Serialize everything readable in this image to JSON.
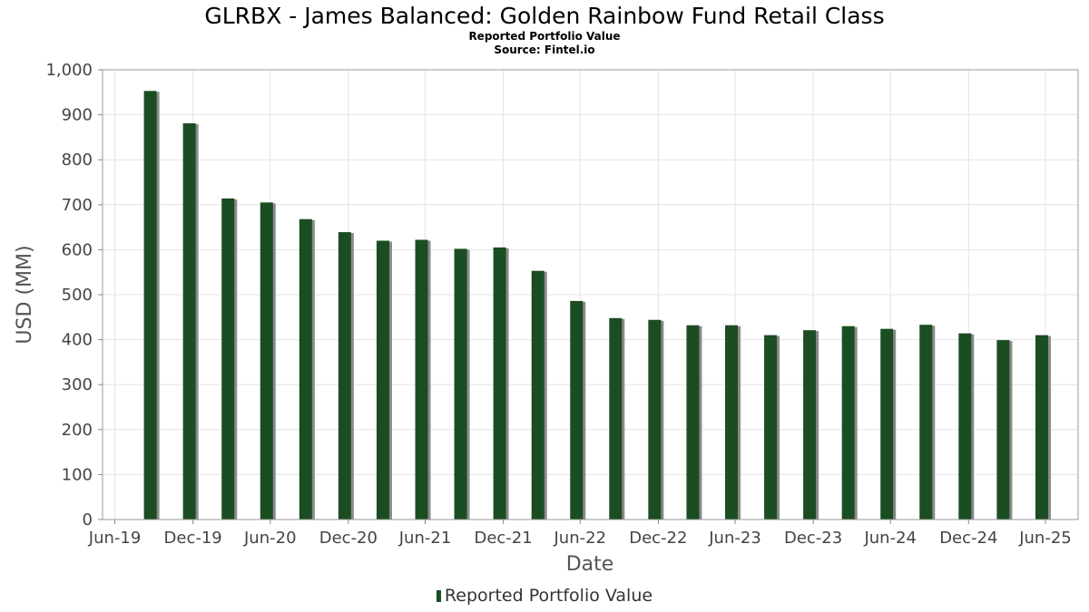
{
  "chart_data": {
    "type": "bar",
    "title": "GLRBX - James Balanced: Golden Rainbow Fund Retail Class",
    "subtitle": "Reported Portfolio Value",
    "source": "Source: Fintel.io",
    "xlabel": "Date",
    "ylabel": "USD (MM)",
    "ylim": [
      0,
      1000
    ],
    "yticks": [
      0,
      100,
      200,
      300,
      400,
      500,
      600,
      700,
      800,
      900,
      1000
    ],
    "ytick_labels": [
      "0",
      "100",
      "200",
      "300",
      "400",
      "500",
      "600",
      "700",
      "800",
      "900",
      "1,000"
    ],
    "xlim": [
      "2019-06-01",
      "2025-09-15"
    ],
    "xticks": [
      "2019-06-30",
      "2019-12-31",
      "2020-06-30",
      "2020-12-31",
      "2021-06-30",
      "2021-12-31",
      "2022-06-30",
      "2022-12-31",
      "2023-06-30",
      "2023-12-31",
      "2024-06-30",
      "2024-12-31",
      "2025-06-30"
    ],
    "xtick_labels": [
      "Jun-19",
      "Dec-19",
      "Jun-20",
      "Dec-20",
      "Jun-21",
      "Dec-21",
      "Jun-22",
      "Dec-22",
      "Jun-23",
      "Dec-23",
      "Jun-24",
      "Dec-24",
      "Jun-25"
    ],
    "grid": true,
    "legend_position": "bottom-center",
    "colors": {
      "bar": "#1b4d22",
      "bar_shadow": "#8a8a8a",
      "grid": "#e3e3e3",
      "frame": "#999999"
    },
    "series": [
      {
        "name": "Reported Portfolio Value",
        "x": [
          "2019-09-30",
          "2019-12-31",
          "2020-03-31",
          "2020-06-30",
          "2020-09-30",
          "2020-12-31",
          "2021-03-31",
          "2021-06-30",
          "2021-09-30",
          "2021-12-31",
          "2022-03-31",
          "2022-06-30",
          "2022-09-30",
          "2022-12-31",
          "2023-03-31",
          "2023-06-30",
          "2023-09-30",
          "2023-12-31",
          "2024-03-31",
          "2024-06-30",
          "2024-09-30",
          "2024-12-31",
          "2025-03-31",
          "2025-06-30"
        ],
        "values": [
          953,
          881,
          714,
          705,
          668,
          639,
          620,
          622,
          602,
          605,
          553,
          486,
          448,
          444,
          432,
          432,
          410,
          421,
          430,
          424,
          433,
          414,
          399,
          410
        ]
      }
    ]
  }
}
